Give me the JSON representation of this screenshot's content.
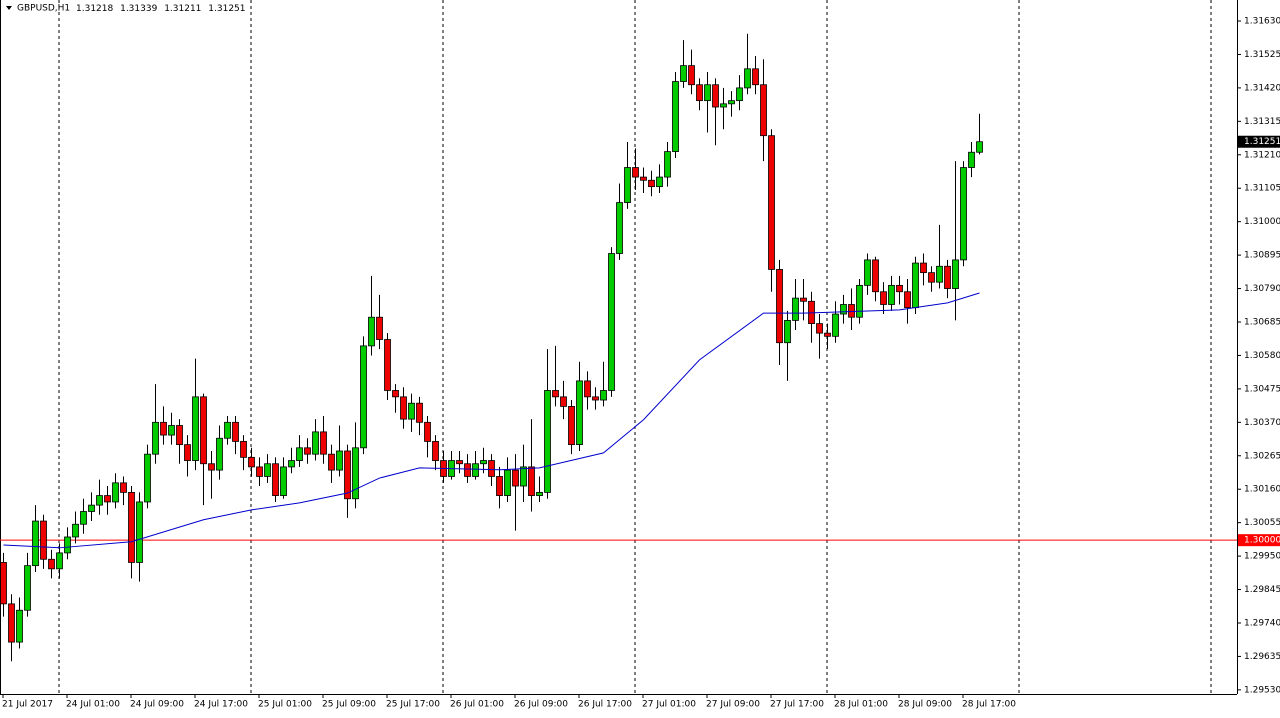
{
  "chart_data": {
    "type": "candlestick",
    "title": "GBPUSD,H1",
    "categories": [
      "21 Jul 2017",
      null,
      null,
      null,
      null,
      null,
      null,
      null,
      "24 Jul 01:00",
      null,
      null,
      null,
      null,
      null,
      null,
      null,
      "24 Jul 09:00",
      null,
      null,
      null,
      null,
      null,
      null,
      null,
      "24 Jul 17:00",
      null,
      null,
      null,
      null,
      null,
      null,
      null,
      "25 Jul 01:00",
      null,
      null,
      null,
      null,
      null,
      null,
      null,
      "25 Jul 09:00",
      null,
      null,
      null,
      null,
      null,
      null,
      null,
      "25 Jul 17:00",
      null,
      null,
      null,
      null,
      null,
      null,
      null,
      "26 Jul 01:00",
      null,
      null,
      null,
      null,
      null,
      null,
      null,
      "26 Jul 09:00",
      null,
      null,
      null,
      null,
      null,
      null,
      null,
      "26 Jul 17:00",
      null,
      null,
      null,
      null,
      null,
      null,
      null,
      "27 Jul 01:00",
      null,
      null,
      null,
      null,
      null,
      null,
      null,
      "27 Jul 09:00",
      null,
      null,
      null,
      null,
      null,
      null,
      null,
      "27 Jul 17:00",
      null,
      null,
      null,
      null,
      null,
      null,
      null,
      "28 Jul 01:00",
      null,
      null,
      null,
      null,
      null,
      null,
      null,
      "28 Jul 09:00",
      null,
      null,
      null,
      null,
      null,
      null,
      null,
      "28 Jul 17:00",
      null,
      null
    ],
    "candles": {
      "up_color": "#00cc00",
      "down_color": "#ee0000",
      "open": [
        1.2993,
        1.298,
        1.2968,
        1.2978,
        1.2992,
        1.3006,
        1.2994,
        1.2991,
        1.2996,
        1.3001,
        1.3005,
        1.3009,
        1.3011,
        1.3014,
        1.3012,
        1.3018,
        1.3015,
        1.2993,
        1.3012,
        1.3027,
        1.3037,
        1.3033,
        1.3036,
        1.303,
        1.3025,
        1.3045,
        1.3024,
        1.3022,
        1.3032,
        1.3037,
        1.3031,
        1.3026,
        1.3023,
        1.302,
        1.3024,
        1.3014,
        1.3023,
        1.3025,
        1.3029,
        1.3027,
        1.3034,
        1.3027,
        1.3022,
        1.3028,
        1.3013,
        1.3029,
        1.3061,
        1.307,
        1.3063,
        1.3047,
        1.3045,
        1.3038,
        1.3043,
        1.3037,
        1.3031,
        1.3025,
        1.302,
        1.3025,
        1.3024,
        1.302,
        1.3024,
        1.3025,
        1.302,
        1.3014,
        1.3022,
        1.3017,
        1.3023,
        1.3014,
        1.3015,
        1.3047,
        1.3045,
        1.3042,
        1.303,
        1.305,
        1.3045,
        1.3044,
        1.3047,
        1.309,
        1.3106,
        1.3117,
        1.3114,
        1.3113,
        1.3111,
        1.3114,
        1.3122,
        1.3144,
        1.3149,
        1.3143,
        1.3138,
        1.3143,
        1.3136,
        1.3137,
        1.3138,
        1.3142,
        1.3148,
        1.3143,
        1.3127,
        1.3085,
        1.3062,
        1.3069,
        1.3076,
        1.3075,
        1.3068,
        1.3065,
        1.3064,
        1.3071,
        1.3074,
        1.307,
        1.308,
        1.3088,
        1.3078,
        1.3074,
        1.308,
        1.3078,
        1.3073,
        1.3087,
        1.3084,
        1.3081,
        1.3086,
        1.3079,
        1.3088,
        1.3117,
        1.31218
      ],
      "high": [
        1.2996,
        1.2983,
        1.2982,
        1.2996,
        1.3011,
        1.3008,
        1.2997,
        1.2999,
        1.3004,
        1.3009,
        1.3013,
        1.3015,
        1.3019,
        1.3017,
        1.3021,
        1.302,
        1.3017,
        1.3015,
        1.303,
        1.3049,
        1.3042,
        1.304,
        1.3038,
        1.3033,
        1.3057,
        1.3046,
        1.3028,
        1.3036,
        1.3039,
        1.3039,
        1.3033,
        1.3029,
        1.3026,
        1.3027,
        1.3026,
        1.3026,
        1.3029,
        1.3033,
        1.3032,
        1.3038,
        1.3039,
        1.303,
        1.3036,
        1.303,
        1.3037,
        1.3064,
        1.3083,
        1.3077,
        1.3065,
        1.3049,
        1.3048,
        1.3046,
        1.3045,
        1.3039,
        1.3033,
        1.3028,
        1.3028,
        1.3028,
        1.3027,
        1.3028,
        1.3029,
        1.3027,
        1.3023,
        1.3026,
        1.3027,
        1.303,
        1.3038,
        1.302,
        1.306,
        1.3061,
        1.305,
        1.3044,
        1.3056,
        1.3053,
        1.3048,
        1.3056,
        1.3092,
        1.3112,
        1.3125,
        1.3123,
        1.3117,
        1.3116,
        1.3118,
        1.3125,
        1.3147,
        1.3157,
        1.3154,
        1.3145,
        1.3147,
        1.3145,
        1.3142,
        1.3141,
        1.3146,
        1.3159,
        1.3152,
        1.3151,
        1.3129,
        1.3088,
        1.3072,
        1.3082,
        1.3082,
        1.3078,
        1.3071,
        1.3068,
        1.3075,
        1.3077,
        1.3079,
        1.3082,
        1.309,
        1.3089,
        1.3081,
        1.3083,
        1.3083,
        1.3082,
        1.3089,
        1.309,
        1.3086,
        1.3099,
        1.3088,
        1.3119,
        1.3119,
        1.3125,
        1.31339
      ],
      "low": [
        1.2976,
        1.2962,
        1.2966,
        1.2976,
        1.299,
        1.2991,
        1.2988,
        1.2988,
        1.2994,
        1.2999,
        1.3002,
        1.3006,
        1.3008,
        1.3008,
        1.301,
        1.3011,
        1.2988,
        1.2987,
        1.301,
        1.3024,
        1.303,
        1.303,
        1.3024,
        1.302,
        1.3022,
        1.3011,
        1.3013,
        1.3019,
        1.303,
        1.3027,
        1.3022,
        1.302,
        1.3017,
        1.3018,
        1.3012,
        1.3013,
        1.3021,
        1.3023,
        1.3024,
        1.3025,
        1.3024,
        1.3018,
        1.302,
        1.3007,
        1.301,
        1.3027,
        1.3058,
        1.306,
        1.3044,
        1.304,
        1.3035,
        1.3034,
        1.3033,
        1.3026,
        1.3022,
        1.3018,
        1.3019,
        1.3021,
        1.3018,
        1.3019,
        1.3021,
        1.3017,
        1.301,
        1.3012,
        1.3003,
        1.3012,
        1.3009,
        1.3012,
        1.3013,
        1.3042,
        1.3038,
        1.3027,
        1.3028,
        1.3041,
        1.3041,
        1.3042,
        1.3045,
        1.3088,
        1.3104,
        1.311,
        1.3109,
        1.3108,
        1.3109,
        1.3111,
        1.312,
        1.3142,
        1.314,
        1.3135,
        1.3128,
        1.3124,
        1.3129,
        1.3133,
        1.3135,
        1.314,
        1.314,
        1.3119,
        1.3078,
        1.3055,
        1.305,
        1.3066,
        1.3069,
        1.3062,
        1.3057,
        1.306,
        1.3062,
        1.3068,
        1.3066,
        1.3068,
        1.3077,
        1.3075,
        1.3071,
        1.3072,
        1.3074,
        1.3068,
        1.3071,
        1.308,
        1.3078,
        1.3079,
        1.3076,
        1.3069,
        1.3086,
        1.3114,
        1.31211
      ],
      "close": [
        1.298,
        1.2968,
        1.2978,
        1.2992,
        1.3006,
        1.2994,
        1.2991,
        1.2996,
        1.3001,
        1.3005,
        1.3009,
        1.3011,
        1.3014,
        1.3012,
        1.3018,
        1.3015,
        1.2993,
        1.3012,
        1.3027,
        1.3037,
        1.3033,
        1.3036,
        1.303,
        1.3025,
        1.3045,
        1.3024,
        1.3022,
        1.3032,
        1.3037,
        1.3031,
        1.3026,
        1.3023,
        1.302,
        1.3024,
        1.3014,
        1.3023,
        1.3025,
        1.3029,
        1.3027,
        1.3034,
        1.3027,
        1.3022,
        1.3028,
        1.3013,
        1.3029,
        1.3061,
        1.307,
        1.3063,
        1.3047,
        1.3045,
        1.3038,
        1.3043,
        1.3037,
        1.3031,
        1.3025,
        1.302,
        1.3025,
        1.3024,
        1.302,
        1.3024,
        1.3025,
        1.302,
        1.3014,
        1.3022,
        1.3017,
        1.3023,
        1.3014,
        1.3015,
        1.3047,
        1.3045,
        1.3042,
        1.303,
        1.305,
        1.3045,
        1.3044,
        1.3047,
        1.309,
        1.3106,
        1.3117,
        1.3114,
        1.3113,
        1.3111,
        1.3114,
        1.3122,
        1.3144,
        1.3149,
        1.3143,
        1.3138,
        1.3143,
        1.3136,
        1.3137,
        1.3138,
        1.3142,
        1.3148,
        1.3143,
        1.3127,
        1.3085,
        1.3062,
        1.3069,
        1.3076,
        1.3075,
        1.3068,
        1.3065,
        1.3064,
        1.3071,
        1.3074,
        1.307,
        1.308,
        1.3088,
        1.3078,
        1.3074,
        1.308,
        1.3078,
        1.3073,
        1.3087,
        1.3084,
        1.3081,
        1.3086,
        1.3079,
        1.3088,
        1.3117,
        1.31218,
        1.31251
      ]
    },
    "moving_average": {
      "color": "#0000cd",
      "x": [
        0,
        7,
        16,
        25,
        31,
        37,
        43,
        47,
        52,
        62,
        67,
        75,
        80,
        87,
        95,
        100,
        112,
        118,
        122
      ],
      "values": [
        1.29985,
        1.29976,
        1.29995,
        1.30064,
        1.30095,
        1.30117,
        1.30148,
        1.30195,
        1.30227,
        1.30221,
        1.30227,
        1.30274,
        1.30378,
        1.30566,
        1.30713,
        1.30713,
        1.30723,
        1.30745,
        1.30776
      ]
    },
    "hline": {
      "value": 1.3,
      "label": "1.30000",
      "color": "#ff0000"
    },
    "ylim": [
      1.29517,
      1.31696
    ],
    "yticks": [
      {
        "value": 1.3163,
        "label": "1.31630"
      },
      1.31525,
      {
        "value": 1.3142,
        "label": "1.31420"
      },
      1.31315,
      {
        "value": 1.3121,
        "label": "1.31210"
      },
      1.31105,
      {
        "value": 1.31,
        "label": "1.31000"
      },
      1.30895,
      {
        "value": 1.3079,
        "label": "1.30790"
      },
      1.30685,
      {
        "value": 1.3058,
        "label": "1.30580"
      },
      1.30475,
      {
        "value": 1.3037,
        "label": "1.30370"
      },
      1.30265,
      {
        "value": 1.3016,
        "label": "1.30160"
      },
      1.30055,
      {
        "value": 1.2995,
        "label": "1.29950"
      },
      1.29845,
      {
        "value": 1.2974,
        "label": "1.29740"
      },
      1.29635,
      {
        "value": 1.2953,
        "label": "1.29530"
      }
    ]
  }
}
